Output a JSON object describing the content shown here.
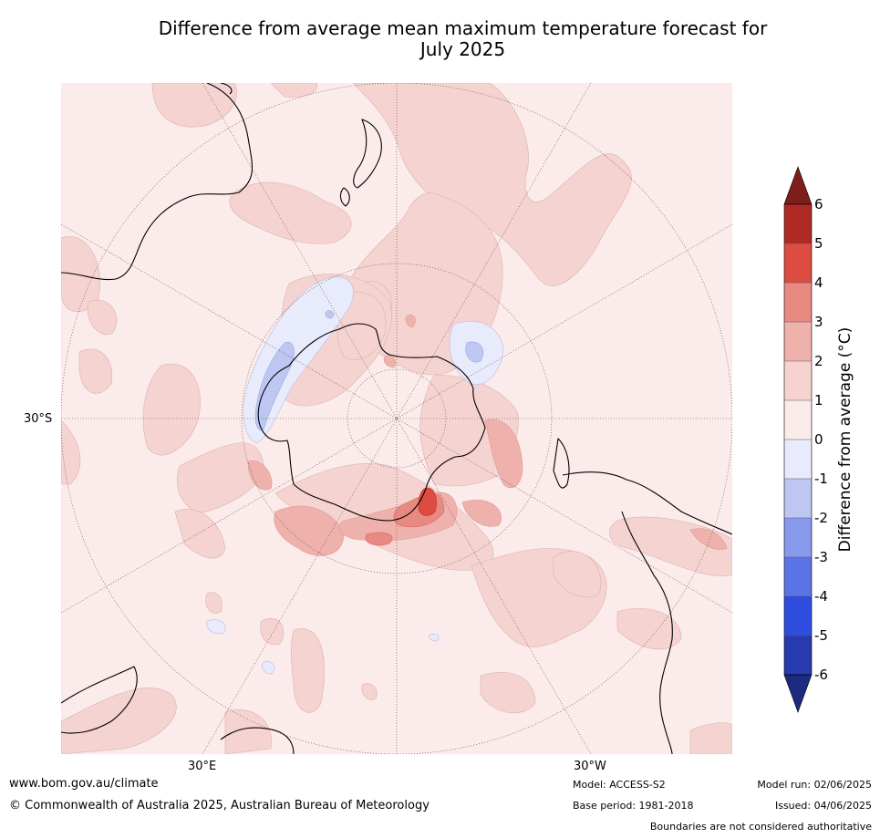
{
  "title_line1": "Difference from average mean maximum temperature forecast for",
  "title_line2": "July 2025",
  "map": {
    "projection": "south polar stereographic",
    "lat_label_left": "30°S",
    "lon_labels_bottom": [
      "30°E",
      "30°W"
    ],
    "graticule": "dotted",
    "features": [
      "Antarctica",
      "Australia",
      "New Zealand",
      "South America",
      "Africa"
    ]
  },
  "colorbar": {
    "label": "Difference from average (°C)",
    "ticks": [
      "6",
      "5",
      "4",
      "3",
      "2",
      "1",
      "0",
      "-1",
      "-2",
      "-3",
      "-4",
      "-5",
      "-6"
    ],
    "colors": {
      "above_6": "#7c1f1a",
      "5_to_6": "#b02a25",
      "4_to_5": "#dc4c40",
      "3_to_4": "#e98a82",
      "2_to_3": "#efb1ab",
      "1_to_2": "#f5d3d1",
      "0_to_1": "#fbebea",
      "m1_to_0": "#e8ebfb",
      "m2_to_m1": "#bec6f2",
      "m3_to_m2": "#8999ec",
      "m4_to_m3": "#5c73e6",
      "m5_to_m4": "#2f4ee0",
      "m6_to_m5": "#273ab0",
      "below_m6": "#1c2a80"
    },
    "extend": "both"
  },
  "footer": {
    "website": "www.bom.gov.au/climate",
    "copyright": "© Commonwealth of Australia 2025, Australian Bureau of Meteorology",
    "model": "Model: ACCESS-S2",
    "base_period": "Base period: 1981-2018",
    "model_run": "Model run: 02/06/2025",
    "issued": "Issued: 04/06/2025",
    "disclaimer": "Boundaries are not considered authoritative"
  }
}
